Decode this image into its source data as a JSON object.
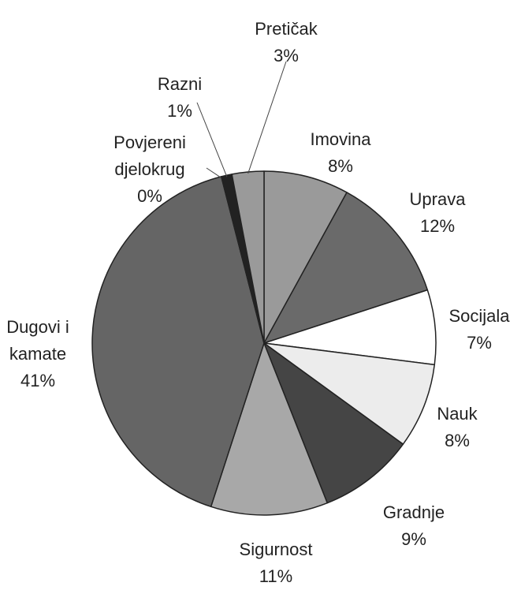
{
  "chart_data": {
    "type": "pie",
    "categories": [
      "Imovina",
      "Uprava",
      "Socijala",
      "Nauk",
      "Gradnje",
      "Sigurnost",
      "Dugovi i kamate",
      "Povjereni djelokrug",
      "Razni",
      "Pretičak"
    ],
    "values": [
      8,
      12,
      7,
      8,
      9,
      11,
      41,
      0,
      1,
      3
    ],
    "value_labels": [
      "8%",
      "12%",
      "7%",
      "8%",
      "9%",
      "11%",
      "41%",
      "0%",
      "1%",
      "3%"
    ],
    "colors": [
      "#9a9a9a",
      "#6a6a6a",
      "#ffffff",
      "#ececec",
      "#454545",
      "#a8a8a8",
      "#656565",
      "#ffffff",
      "#222222",
      "#9a9a9a"
    ]
  }
}
